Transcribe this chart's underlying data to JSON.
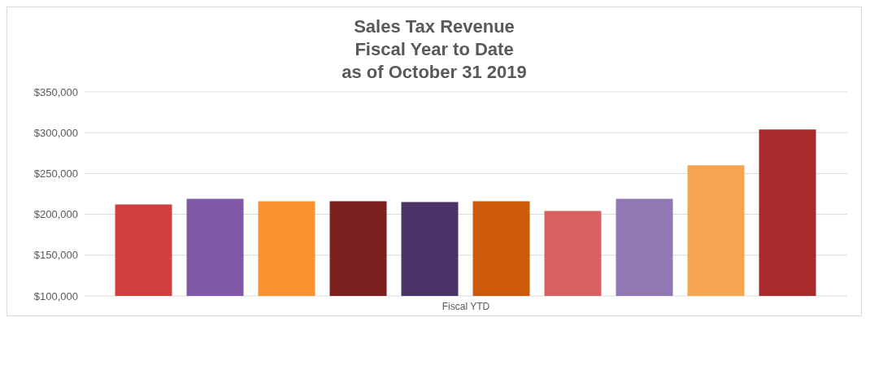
{
  "chart_data": {
    "type": "bar",
    "title": "Sales Tax Revenue\nFiscal Year to Date\nas of October 31 2019",
    "categories": [
      "Fiscal YTD"
    ],
    "series": [
      {
        "color": "#d04040",
        "values": [
          212000
        ]
      },
      {
        "color": "#7f58a8",
        "values": [
          219000
        ]
      },
      {
        "color": "#f7922e",
        "values": [
          216000
        ]
      },
      {
        "color": "#7c1f1f",
        "values": [
          216000
        ]
      },
      {
        "color": "#4a3468",
        "values": [
          215000
        ]
      },
      {
        "color": "#cc5a0a",
        "values": [
          216000
        ]
      },
      {
        "color": "#d96060",
        "values": [
          204000
        ]
      },
      {
        "color": "#9277b5",
        "values": [
          219000
        ]
      },
      {
        "color": "#f5a450",
        "values": [
          260000
        ]
      },
      {
        "color": "#a82a2a",
        "values": [
          304000
        ]
      }
    ],
    "ylim": [
      100000,
      350000
    ],
    "yticks": [
      {
        "value": 100000,
        "label": "$100,000"
      },
      {
        "value": 150000,
        "label": "$150,000"
      },
      {
        "value": 200000,
        "label": "$200,000"
      },
      {
        "value": 250000,
        "label": "$250,000"
      },
      {
        "value": 300000,
        "label": "$300,000"
      },
      {
        "value": 350000,
        "label": "$350,000"
      }
    ],
    "grid": "y",
    "legend": false
  }
}
